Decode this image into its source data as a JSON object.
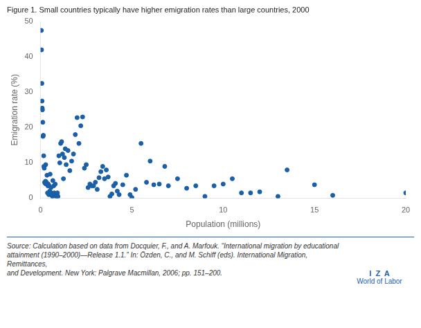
{
  "chart_data": {
    "type": "scatter",
    "title": "Figure 1. Small countries typically have higher emigration rates than large countries, 2000",
    "x_label": "Population (millions)",
    "y_label": "Emigration rate (%)",
    "annotations": [
      "Source: Calculation based on data from Docquier, F., and A. Marfouk. “International migration by educational\nattainment (1990–2000)—Release 1.1.” In: Özden, C., and M. Schiff (eds). International Migration, Remittances,\nand Development. New York: Palgrave Macmillan, 2006; pp. 151–200.",
      "I  Z  A",
      "World of Labor"
    ],
    "color": "#1a5fa8",
    "xlim": [
      0,
      20
    ],
    "ylim": [
      0,
      50
    ],
    "xticks": [
      0,
      5,
      10,
      15,
      20
    ],
    "yticks": [
      0,
      10,
      20,
      30,
      40,
      50
    ],
    "grid": false,
    "x": [
      0.04,
      0.05,
      0.07,
      0.08,
      0.09,
      0.1,
      0.12,
      0.13,
      0.15,
      0.17,
      0.18,
      0.2,
      0.22,
      0.25,
      0.27,
      0.28,
      0.3,
      0.32,
      0.35,
      0.37,
      0.38,
      0.4,
      0.42,
      0.45,
      0.47,
      0.48,
      0.5,
      0.52,
      0.55,
      0.57,
      0.58,
      0.6,
      0.62,
      0.65,
      0.67,
      0.7,
      0.72,
      0.75,
      0.77,
      0.8,
      0.82,
      0.85,
      0.87,
      0.9,
      0.92,
      0.95,
      1.0,
      1.05,
      1.1,
      1.15,
      1.2,
      1.25,
      1.3,
      1.35,
      1.4,
      1.5,
      1.6,
      1.7,
      1.8,
      1.9,
      2.0,
      2.1,
      2.2,
      2.3,
      2.4,
      2.5,
      2.6,
      2.7,
      2.8,
      2.9,
      3.0,
      3.1,
      3.2,
      3.3,
      3.4,
      3.5,
      3.6,
      3.7,
      3.8,
      3.9,
      4.0,
      4.1,
      4.2,
      4.3,
      4.5,
      4.7,
      4.9,
      5.0,
      5.2,
      5.5,
      5.8,
      6.0,
      6.2,
      6.5,
      6.8,
      7.0,
      7.5,
      8.0,
      8.5,
      9.0,
      9.5,
      10.0,
      10.5,
      11.0,
      11.5,
      12.0,
      13.0,
      13.5,
      15.0,
      16.0,
      20.0
    ],
    "values": [
      47.5,
      42.0,
      32.5,
      27.5,
      25.5,
      25.0,
      21.5,
      17.5,
      17.8,
      12.0,
      9.0,
      8.5,
      4.5,
      4.2,
      4.8,
      9.5,
      4.0,
      4.5,
      6.5,
      4.0,
      1.5,
      3.5,
      4.0,
      1.0,
      3.5,
      1.2,
      2.0,
      6.8,
      1.5,
      3.0,
      1.0,
      1.5,
      0.8,
      0.5,
      5.0,
      1.0,
      3.5,
      1.5,
      1.0,
      4.0,
      0.8,
      0.5,
      1.2,
      0.7,
      1.5,
      0.5,
      12.0,
      10.0,
      15.5,
      16.0,
      12.5,
      5.5,
      11.5,
      14.0,
      9.5,
      13.5,
      7.8,
      10.5,
      12.5,
      18.0,
      22.8,
      15.5,
      20.5,
      23.0,
      8.5,
      9.5,
      3.0,
      4.0,
      3.5,
      3.5,
      4.5,
      2.5,
      5.8,
      7.5,
      9.0,
      5.5,
      8.0,
      6.0,
      0.5,
      1.2,
      3.5,
      4.2,
      2.0,
      1.0,
      3.8,
      6.5,
      1.0,
      0.2,
      2.5,
      15.5,
      4.5,
      10.5,
      3.8,
      4.0,
      9.0,
      3.5,
      5.5,
      2.8,
      3.5,
      0.5,
      3.5,
      4.0,
      5.5,
      1.5,
      1.5,
      1.8,
      0.5,
      8.0,
      3.8,
      0.8,
      1.5
    ]
  }
}
